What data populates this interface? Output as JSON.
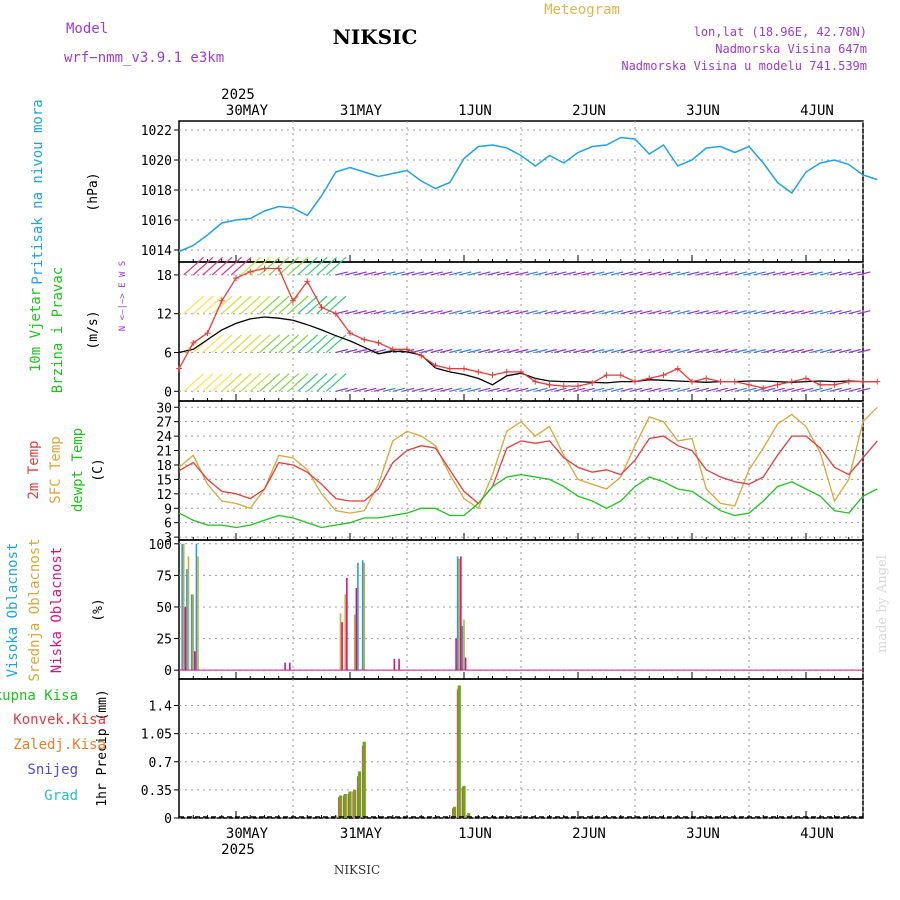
{
  "header": {
    "model_label": "Model",
    "model_name": "wrf−nmm_v3.9.1  e3km",
    "station": "NIKSIC",
    "product": "Meteogram",
    "lonlat": "lon,lat (18.96E, 42.78N)",
    "elevation": "Nadmorska Visina 647m",
    "model_elevation": "Nadmorska Visina u modelu 741.539m",
    "credit": "made by Angel",
    "footer_station": "NIKSIC"
  },
  "colors": {
    "pressure": "#1fa3e6",
    "wind_speed": "#000000",
    "gust": "#e63c3c",
    "temp_2m": "#e63c3c",
    "temp_sfc": "#d9a63a",
    "dewpoint": "#1fc21f",
    "cloud_high": "#1fa3e6",
    "cloud_mid": "#d9a63a",
    "cloud_low": "#d4147e",
    "precip_total": "#66a81e",
    "precip_conv": "#e63c3c",
    "title_purple": "#9a3cd6",
    "title_orange": "#e3b34d"
  },
  "chart_data": [
    {
      "type": "line",
      "id": "pressure",
      "ylabel_left": "Pritisak na nivou mora",
      "unit": "(hPa)",
      "ylim": [
        1013.2,
        1022.6
      ],
      "yticks": [
        1014,
        1016,
        1018,
        1020,
        1022
      ],
      "x_start_hour": -12,
      "x_step_hours": 3,
      "series": [
        {
          "name": "Pritisak na nivou mora",
          "values": [
            1013.9,
            1014.3,
            1015.0,
            1015.8,
            1016.0,
            1016.1,
            1016.6,
            1016.9,
            1016.8,
            1016.3,
            1017.6,
            1019.2,
            1019.5,
            1019.2,
            1018.9,
            1019.1,
            1019.3,
            1018.6,
            1018.1,
            1018.5,
            1020.1,
            1020.9,
            1021.0,
            1020.8,
            1020.3,
            1019.6,
            1020.3,
            1019.8,
            1020.5,
            1020.9,
            1021.0,
            1021.5,
            1021.4,
            1020.4,
            1021.0,
            1019.6,
            1020.0,
            1020.8,
            1020.9,
            1020.5,
            1020.9,
            1019.8,
            1018.5,
            1017.8,
            1019.2,
            1019.8,
            1020.0,
            1019.7,
            1019.0,
            1018.7
          ]
        }
      ]
    },
    {
      "type": "line",
      "id": "wind",
      "ylabel_left": [
        "10m Vjetar",
        "Brzina i Pravac"
      ],
      "unit": "(m/s)",
      "compass": "N <—|—> E W S",
      "ylim": [
        -1.5,
        20.0
      ],
      "yticks": [
        0,
        6,
        12,
        18
      ],
      "x_start_hour": -12,
      "x_step_hours": 3,
      "barb_levels": [
        0,
        6,
        12,
        18
      ],
      "series": [
        {
          "name": "Brzina vjetra",
          "values": [
            6.0,
            6.5,
            8.0,
            9.5,
            10.5,
            11.2,
            11.5,
            11.3,
            11.0,
            10.3,
            9.5,
            8.6,
            7.8,
            6.8,
            5.8,
            6.2,
            6.1,
            5.6,
            3.6,
            3.0,
            2.6,
            2.0,
            1.0,
            2.4,
            2.8,
            2.0,
            1.6,
            1.5,
            1.5,
            1.4,
            1.3,
            1.5,
            1.5,
            1.8,
            1.7,
            1.6,
            1.5,
            1.4,
            1.5,
            1.5,
            1.6,
            1.6,
            1.5,
            1.4,
            1.5,
            1.6,
            1.5,
            1.6,
            1.5,
            1.5
          ]
        },
        {
          "name": "Udari vjetra",
          "values": [
            3.5,
            7.5,
            9.0,
            14.0,
            17.5,
            18.5,
            19.0,
            19.0,
            14.0,
            17.0,
            13.0,
            12.0,
            9.0,
            8.0,
            7.5,
            6.5,
            6.5,
            5.5,
            4.0,
            3.5,
            3.5,
            3.0,
            2.5,
            3.0,
            3.0,
            1.5,
            1.0,
            0.8,
            0.8,
            1.3,
            2.5,
            2.5,
            1.5,
            2.0,
            2.5,
            3.5,
            1.5,
            2.0,
            1.5,
            1.5,
            1.0,
            0.5,
            1.0,
            1.5,
            2.0,
            1.0,
            1.0,
            1.5,
            1.5,
            1.5
          ]
        }
      ]
    },
    {
      "type": "line",
      "id": "temperature",
      "ylabel_left": [
        "2m Temp",
        "SFC Temp",
        "dewpt Temp"
      ],
      "unit": "(C)",
      "ylim": [
        2.4,
        31.3
      ],
      "yticks": [
        3,
        6,
        9,
        12,
        15,
        18,
        21,
        24,
        27,
        30
      ],
      "x_start_hour": -12,
      "x_step_hours": 3,
      "series": [
        {
          "name": "2m Temp",
          "values": [
            16.8,
            18.5,
            15.0,
            12.5,
            12.0,
            11.0,
            13.0,
            18.5,
            18.0,
            16.5,
            14.0,
            11.0,
            10.5,
            10.5,
            13.0,
            18.5,
            21.0,
            22.0,
            21.5,
            17.0,
            12.5,
            10.0,
            13.5,
            21.5,
            23.0,
            22.5,
            23.0,
            19.5,
            17.5,
            16.5,
            17.0,
            16.0,
            19.0,
            23.5,
            24.0,
            22.0,
            21.0,
            17.0,
            15.5,
            14.5,
            14.0,
            15.5,
            20.0,
            24.0,
            24.0,
            21.5,
            17.5,
            16.0,
            19.5,
            23.0
          ]
        },
        {
          "name": "SFC Temp",
          "values": [
            17.5,
            20.0,
            14.0,
            10.5,
            10.0,
            9.0,
            13.0,
            20.0,
            19.5,
            17.0,
            12.0,
            8.5,
            8.0,
            8.5,
            14.0,
            23.0,
            25.0,
            24.0,
            22.0,
            16.0,
            11.0,
            9.0,
            16.0,
            25.0,
            27.0,
            24.0,
            26.0,
            20.0,
            15.0,
            14.0,
            13.0,
            15.5,
            22.0,
            28.0,
            27.0,
            23.0,
            23.5,
            13.0,
            10.0,
            9.5,
            17.0,
            21.5,
            26.5,
            28.5,
            26.0,
            20.5,
            10.5,
            15.0,
            27.0,
            30.0
          ]
        },
        {
          "name": "dewpt Temp",
          "values": [
            8.0,
            6.5,
            5.5,
            5.5,
            5.0,
            5.5,
            6.5,
            7.5,
            7.0,
            6.0,
            5.0,
            5.5,
            6.0,
            7.0,
            7.0,
            7.5,
            8.0,
            9.0,
            9.0,
            7.5,
            7.5,
            10.0,
            13.5,
            15.5,
            16.0,
            15.5,
            15.0,
            13.5,
            11.5,
            10.5,
            9.0,
            10.5,
            13.5,
            15.5,
            14.5,
            13.0,
            12.5,
            10.5,
            8.5,
            7.5,
            8.0,
            10.5,
            13.5,
            14.5,
            13.0,
            11.5,
            8.5,
            8.0,
            11.5,
            13.0
          ]
        }
      ]
    },
    {
      "type": "bar",
      "id": "clouds",
      "ylabel_left": [
        "Visoka Oblacnost",
        "Srednja Oblacnost",
        "Niska Oblacnost"
      ],
      "unit": "(%)",
      "ylim": [
        -7,
        103
      ],
      "yticks": [
        0,
        25,
        50,
        75,
        100
      ],
      "x_step_hours": 1,
      "series": [
        {
          "name": "Visoka Oblacnost",
          "bars": [
            [
              -11,
              100
            ],
            [
              -10,
              80
            ],
            [
              -9,
              60
            ],
            [
              -8,
              100
            ],
            [
              26,
              85
            ],
            [
              27,
              87
            ],
            [
              47,
              90
            ],
            [
              48,
              35
            ]
          ]
        },
        {
          "name": "Srednja Oblacnost",
          "bars": [
            [
              -11,
              100
            ],
            [
              -10,
              90
            ],
            [
              -9,
              60
            ],
            [
              -8,
              90
            ],
            [
              22,
              45
            ],
            [
              23,
              60
            ],
            [
              25,
              44
            ],
            [
              27,
              85
            ],
            [
              47,
              88
            ],
            [
              48,
              40
            ]
          ]
        },
        {
          "name": "Niska Oblacnost",
          "bars": [
            [
              -11,
              50
            ],
            [
              -9,
              15
            ],
            [
              10,
              6
            ],
            [
              11,
              6
            ],
            [
              33,
              9
            ],
            [
              34,
              9
            ],
            [
              22,
              38
            ],
            [
              23,
              73
            ],
            [
              25,
              65
            ],
            [
              46,
              25
            ],
            [
              47,
              90
            ],
            [
              48,
              10
            ]
          ]
        }
      ]
    },
    {
      "type": "bar",
      "id": "precip",
      "ylabel_left": "1hr Precip (mm)",
      "legend": [
        "Ukupna Kisa",
        "Konvek.Kisa",
        "Zaledj.Kisa",
        "Snijeg",
        "Grad"
      ],
      "ylim": [
        0,
        1.73
      ],
      "yticks": [
        0,
        0.35,
        0.7,
        1.05,
        1.4
      ],
      "ytick_labels": [
        "0",
        "0.35",
        "0.7",
        "1.05",
        "1.4"
      ],
      "x_step_hours": 1,
      "series": [
        {
          "name": "Ukupna Kisa",
          "bars": [
            [
              21,
              0.02
            ],
            [
              22,
              0.28
            ],
            [
              23,
              0.3
            ],
            [
              24,
              0.33
            ],
            [
              25,
              0.35
            ],
            [
              26,
              0.58
            ],
            [
              27,
              0.95
            ],
            [
              46,
              0.14
            ],
            [
              47,
              1.65
            ],
            [
              48,
              0.4
            ],
            [
              49,
              0.06
            ]
          ]
        },
        {
          "name": "Konvek.Kisa",
          "bars": [
            [
              22,
              0.26
            ],
            [
              23,
              0.28
            ],
            [
              24,
              0.3
            ],
            [
              25,
              0.33
            ],
            [
              26,
              0.52
            ],
            [
              27,
              0.9
            ],
            [
              46,
              0.12
            ],
            [
              47,
              1.6
            ],
            [
              48,
              0.38
            ],
            [
              49,
              0.04
            ]
          ]
        }
      ]
    }
  ],
  "x_axis": {
    "start_hour": -12,
    "end_hour": 132,
    "day_hours": [
      0,
      24,
      48,
      72,
      96,
      120
    ],
    "day_labels": [
      "30MAY",
      "31MAY",
      "1JUN",
      "2JUN",
      "3JUN",
      "4JUN"
    ],
    "year_label": "2025"
  }
}
